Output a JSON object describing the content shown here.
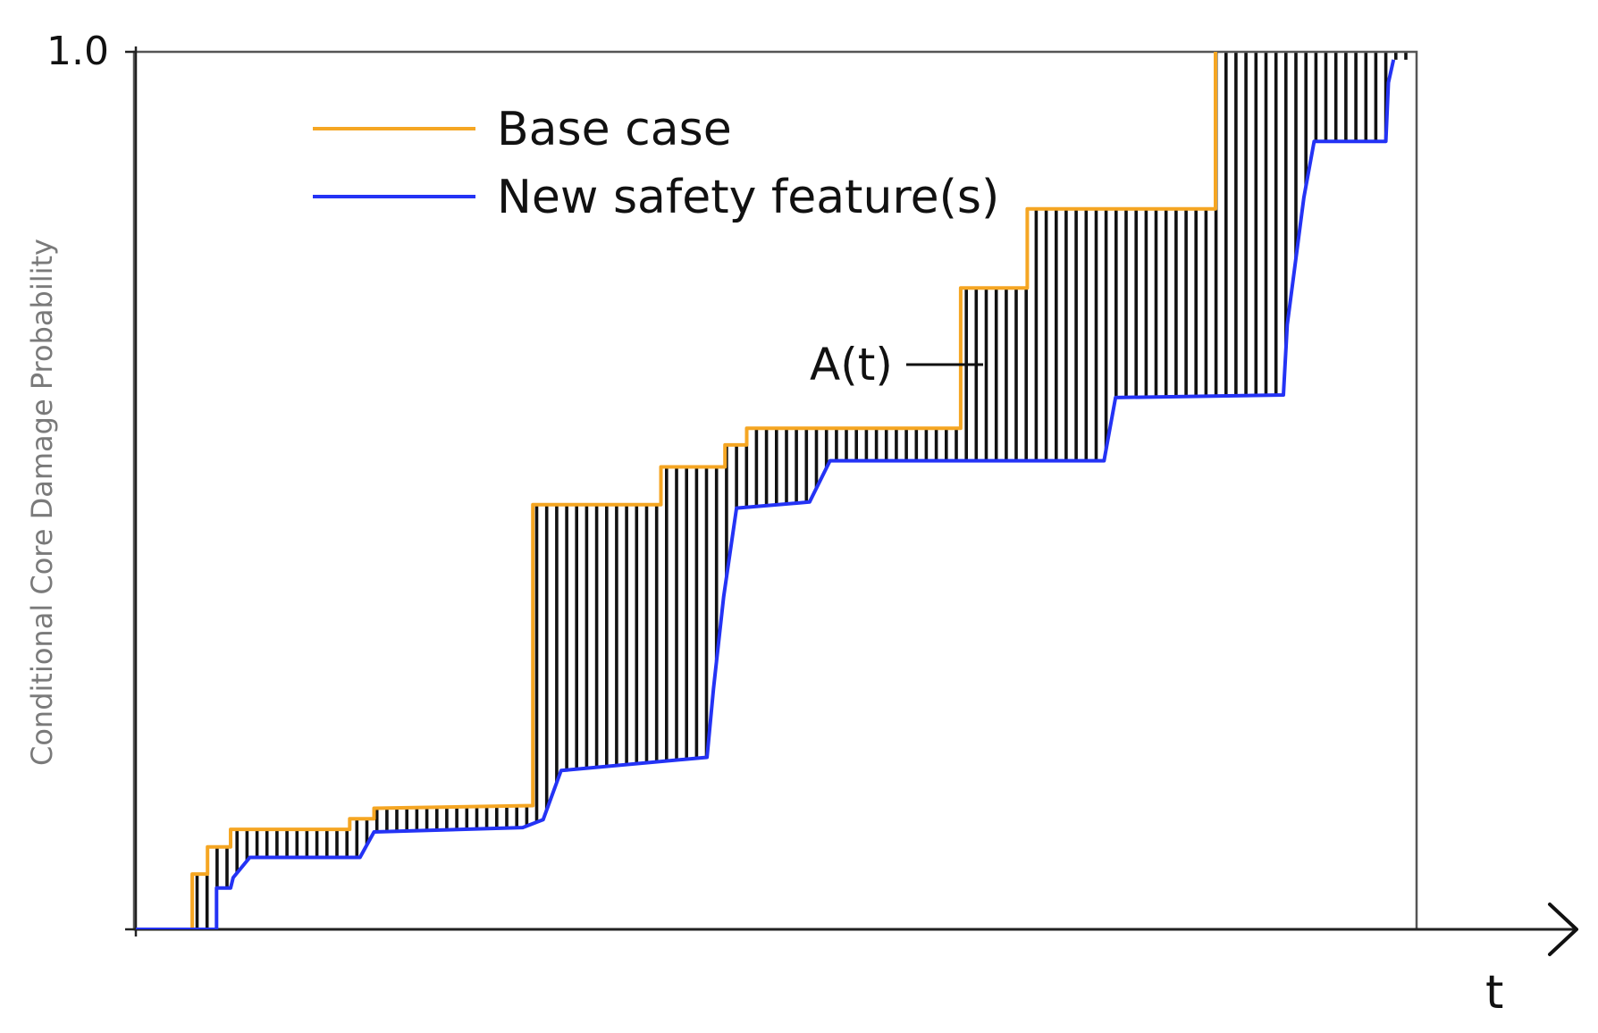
{
  "chart_data": {
    "type": "line",
    "title": "",
    "xlabel": "t",
    "ylabel": "Conditional Core Damage Probability",
    "y_tick_labels": [
      "1.0"
    ],
    "ylim": [
      0,
      1.0
    ],
    "xlim": [
      0,
      100
    ],
    "grid": false,
    "legend_position": "top-left",
    "annotations": [
      {
        "text": "A(t)",
        "x": 52,
        "y": 0.65,
        "refers_to": "hatched area between Base case and New safety feature(s)"
      }
    ],
    "series": [
      {
        "name": "Base case",
        "color": "#F5A623",
        "points": [
          [
            0,
            0
          ],
          [
            4.4,
            0
          ],
          [
            4.4,
            0.063
          ],
          [
            5.6,
            0.063
          ],
          [
            5.6,
            0.094
          ],
          [
            7.4,
            0.094
          ],
          [
            7.4,
            0.114
          ],
          [
            16.7,
            0.114
          ],
          [
            16.7,
            0.126
          ],
          [
            18.6,
            0.126
          ],
          [
            18.6,
            0.138
          ],
          [
            31.0,
            0.141
          ],
          [
            31.0,
            0.484
          ],
          [
            41.0,
            0.484
          ],
          [
            41.0,
            0.527
          ],
          [
            46.0,
            0.527
          ],
          [
            46.0,
            0.552
          ],
          [
            47.7,
            0.552
          ],
          [
            47.7,
            0.571
          ],
          [
            64.4,
            0.571
          ],
          [
            64.4,
            0.731
          ],
          [
            69.6,
            0.731
          ],
          [
            69.6,
            0.821
          ],
          [
            84.3,
            0.821
          ],
          [
            84.3,
            1.0
          ]
        ]
      },
      {
        "name": "New safety feature(s)",
        "color": "#2433F5",
        "points": [
          [
            0,
            0
          ],
          [
            6.3,
            0
          ],
          [
            6.3,
            0.047
          ],
          [
            7.4,
            0.047
          ],
          [
            7.6,
            0.059
          ],
          [
            8.9,
            0.082
          ],
          [
            17.5,
            0.082
          ],
          [
            18.6,
            0.111
          ],
          [
            30.2,
            0.116
          ],
          [
            31.8,
            0.125
          ],
          [
            33.2,
            0.181
          ],
          [
            44.6,
            0.196
          ],
          [
            45.1,
            0.274
          ],
          [
            45.9,
            0.379
          ],
          [
            46.9,
            0.48
          ],
          [
            52.6,
            0.487
          ],
          [
            54.2,
            0.534
          ],
          [
            75.6,
            0.534
          ],
          [
            76.5,
            0.606
          ],
          [
            89.6,
            0.609
          ],
          [
            89.9,
            0.689
          ],
          [
            91.2,
            0.834
          ],
          [
            92.0,
            0.898
          ],
          [
            97.6,
            0.898
          ],
          [
            97.8,
            0.965
          ],
          [
            98.2,
            0.991
          ]
        ]
      }
    ]
  }
}
